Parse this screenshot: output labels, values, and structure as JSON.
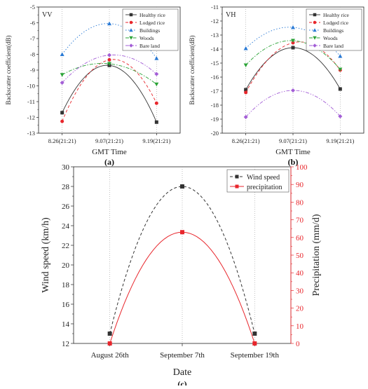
{
  "chart_data": [
    {
      "type": "line",
      "panel_tag": "VV",
      "caption": "(a)",
      "title": "",
      "xlabel": "GMT Time",
      "ylabel": "Backscatter coefficient(dB)",
      "categories": [
        "8.26(21:21)",
        "9.07(21:21)",
        "9.19(21:21)"
      ],
      "ylim": [
        -13,
        -5
      ],
      "yticks": [
        -13,
        -12,
        -11,
        -10,
        -9,
        -8,
        -7,
        -6,
        -5
      ],
      "legend_position": "top-right",
      "series": [
        {
          "name": "Healthy rice",
          "values": [
            -11.7,
            -8.7,
            -12.3
          ],
          "color": "#333333",
          "marker": "square",
          "dash": "solid"
        },
        {
          "name": "Lodged rice",
          "values": [
            -12.25,
            -8.35,
            -11.1
          ],
          "color": "#e8262c",
          "marker": "circle",
          "dash": "dashed"
        },
        {
          "name": "Buildings",
          "values": [
            -8.0,
            -6.05,
            -8.25
          ],
          "color": "#2a7ad5",
          "marker": "triangle-up",
          "dash": "dotted"
        },
        {
          "name": "Woods",
          "values": [
            -9.3,
            -8.6,
            -9.9
          ],
          "color": "#2aa336",
          "marker": "triangle-down",
          "dash": "dash-dot"
        },
        {
          "name": "Bare land",
          "values": [
            -9.8,
            -8.05,
            -9.25
          ],
          "color": "#a35ed6",
          "marker": "diamond",
          "dash": "dash-dot-dot"
        }
      ]
    },
    {
      "type": "line",
      "panel_tag": "VH",
      "caption": "(b)",
      "title": "",
      "xlabel": "GMT Time",
      "ylabel": "Backscatter coefficient(dB)",
      "categories": [
        "8.26(21:21)",
        "9.07(21:21)",
        "9.19(21:21)"
      ],
      "ylim": [
        -20,
        -11
      ],
      "yticks": [
        -20,
        -19,
        -18,
        -17,
        -16,
        -15,
        -14,
        -13,
        -12,
        -11
      ],
      "legend_position": "top-right",
      "series": [
        {
          "name": "Healthy rice",
          "values": [
            -16.9,
            -13.9,
            -16.85
          ],
          "color": "#333333",
          "marker": "square",
          "dash": "solid"
        },
        {
          "name": "Lodged rice",
          "values": [
            -17.1,
            -13.55,
            -15.5
          ],
          "color": "#e8262c",
          "marker": "circle",
          "dash": "dashed"
        },
        {
          "name": "Buildings",
          "values": [
            -13.95,
            -12.45,
            -14.5
          ],
          "color": "#2a7ad5",
          "marker": "triangle-up",
          "dash": "dotted"
        },
        {
          "name": "Woods",
          "values": [
            -15.15,
            -13.4,
            -15.45
          ],
          "color": "#2aa336",
          "marker": "triangle-down",
          "dash": "dash-dot"
        },
        {
          "name": "Bare land",
          "values": [
            -18.85,
            -16.95,
            -18.8
          ],
          "color": "#a35ed6",
          "marker": "diamond",
          "dash": "dash-dot-dot"
        }
      ]
    },
    {
      "type": "line",
      "caption": "(c)",
      "title": "",
      "xlabel": "Date",
      "ylabel": "Wind speed (km/h)",
      "y2label": "Precipitation (mm/d)",
      "categories": [
        "August 26th",
        "September 7th",
        "September 19th"
      ],
      "ylim": [
        12,
        30
      ],
      "yticks": [
        12,
        14,
        16,
        18,
        20,
        22,
        24,
        26,
        28,
        30
      ],
      "y2lim": [
        0,
        100
      ],
      "y2ticks": [
        0,
        10,
        20,
        30,
        40,
        50,
        60,
        70,
        80,
        90,
        100
      ],
      "legend_position": "top-right",
      "series": [
        {
          "name": "Wind speed",
          "axis": "left",
          "values": [
            13,
            28,
            13
          ],
          "color": "#333333",
          "marker": "square",
          "dash": "dashed"
        },
        {
          "name": "precipitation",
          "axis": "right",
          "values": [
            0,
            63,
            0
          ],
          "color": "#e8262c",
          "marker": "square",
          "dash": "solid"
        }
      ]
    }
  ]
}
